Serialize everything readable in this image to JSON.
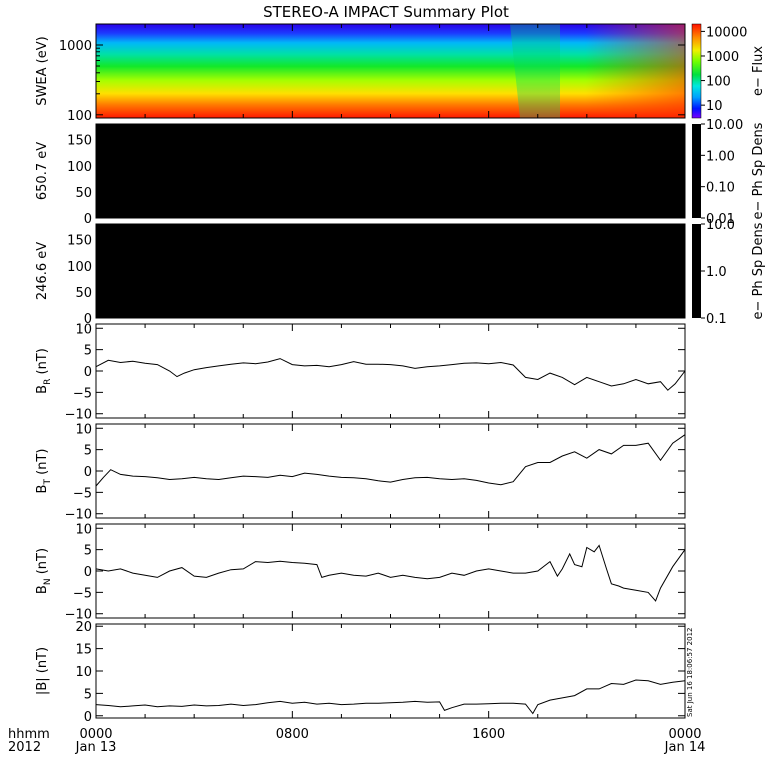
{
  "title": "STEREO-A IMPACT Summary Plot",
  "timestamp": "Sat Jun 16 18:06:57 2012",
  "chart_data": [
    {
      "id": "swea",
      "type": "heatmap",
      "ylabel": "SWEA (eV)",
      "y_scale": "log",
      "ylim": [
        90,
        2000
      ],
      "yticks": [
        {
          "value": 100,
          "label": "100"
        },
        {
          "value": 1000,
          "label": "1000"
        }
      ],
      "colorbar": {
        "label": "e− Flux",
        "scale": "log",
        "range": [
          3,
          20000
        ],
        "ticks": [
          {
            "value": 10,
            "label": "10"
          },
          {
            "value": 100,
            "label": "100"
          },
          {
            "value": 1000,
            "label": "1000"
          },
          {
            "value": 10000,
            "label": "10000"
          }
        ]
      }
    },
    {
      "id": "pad650",
      "type": "heatmap",
      "ylabel": "650.7 eV",
      "ylim": [
        0,
        180
      ],
      "yticks": [
        {
          "value": 0,
          "label": "0"
        },
        {
          "value": 50,
          "label": "50"
        },
        {
          "value": 100,
          "label": "100"
        },
        {
          "value": 150,
          "label": "150"
        }
      ],
      "fill": "#000000",
      "colorbar": {
        "label": "e− Ph Sp Dens",
        "scale": "log",
        "range": [
          0.01,
          10
        ],
        "ticks": [
          {
            "value": 0.01,
            "label": "0.01"
          },
          {
            "value": 0.1,
            "label": "0.10"
          },
          {
            "value": 1,
            "label": "1.00"
          },
          {
            "value": 10,
            "label": "10.00"
          }
        ]
      }
    },
    {
      "id": "pad246",
      "type": "heatmap",
      "ylabel": "246.6 eV",
      "ylim": [
        0,
        180
      ],
      "yticks": [
        {
          "value": 0,
          "label": "0"
        },
        {
          "value": 50,
          "label": "50"
        },
        {
          "value": 100,
          "label": "100"
        },
        {
          "value": 150,
          "label": "150"
        }
      ],
      "fill": "#000000",
      "colorbar": {
        "label": "e− Ph Sp Dens",
        "scale": "log",
        "range": [
          0.1,
          10
        ],
        "ticks": [
          {
            "value": 0.1,
            "label": "0.1"
          },
          {
            "value": 1,
            "label": "1.0"
          },
          {
            "value": 10,
            "label": "10.0"
          }
        ]
      }
    },
    {
      "id": "br",
      "type": "line",
      "ylabel": "B",
      "ylabel_sub": "R",
      "ylabel_unit": " (nT)",
      "ylim": [
        -11,
        11
      ],
      "yticks": [
        {
          "value": -10,
          "label": "−10"
        },
        {
          "value": -5,
          "label": "−5"
        },
        {
          "value": 0,
          "label": "0"
        },
        {
          "value": 5,
          "label": "5"
        },
        {
          "value": 10,
          "label": "10"
        }
      ],
      "x": [
        0,
        0.5,
        1,
        1.5,
        2,
        2.5,
        3,
        3.3,
        3.6,
        4,
        4.5,
        5,
        5.5,
        6,
        6.5,
        7,
        7.5,
        8,
        8.5,
        9,
        9.5,
        10,
        10.5,
        11,
        11.5,
        12,
        12.5,
        13,
        13.5,
        14,
        14.5,
        15,
        15.5,
        16,
        16.5,
        17,
        17.5,
        18,
        18.5,
        19,
        19.5,
        20,
        20.5,
        21,
        21.5,
        22,
        22.5,
        23,
        23.3,
        23.6,
        24
      ],
      "y": [
        1,
        2.5,
        2,
        2.3,
        1.8,
        1.5,
        0,
        -1.3,
        -0.5,
        0.3,
        0.8,
        1.2,
        1.6,
        1.9,
        1.7,
        2.1,
        2.9,
        1.5,
        1.2,
        1.3,
        1.0,
        1.5,
        2.2,
        1.6,
        1.6,
        1.5,
        1.2,
        0.6,
        1.0,
        1.2,
        1.5,
        1.8,
        1.9,
        1.7,
        2.0,
        1.4,
        -1.5,
        -2.0,
        -0.5,
        -1.5,
        -3.2,
        -1.5,
        -2.5,
        -3.5,
        -3.0,
        -2.0,
        -3.0,
        -2.5,
        -4.5,
        -3.0,
        0
      ]
    },
    {
      "id": "bt",
      "type": "line",
      "ylabel": "B",
      "ylabel_sub": "T",
      "ylabel_unit": " (nT)",
      "ylim": [
        -11,
        11
      ],
      "yticks": [
        {
          "value": -10,
          "label": "−10"
        },
        {
          "value": -5,
          "label": "−5"
        },
        {
          "value": 0,
          "label": "0"
        },
        {
          "value": 5,
          "label": "5"
        },
        {
          "value": 10,
          "label": "10"
        }
      ],
      "x": [
        0,
        0.3,
        0.6,
        1,
        1.5,
        2,
        2.5,
        3,
        3.5,
        4,
        4.5,
        5,
        5.5,
        6,
        6.5,
        7,
        7.5,
        8,
        8.5,
        9,
        9.5,
        10,
        10.5,
        11,
        11.5,
        12,
        12.5,
        13,
        13.5,
        14,
        14.5,
        15,
        15.5,
        16,
        16.5,
        17,
        17.5,
        18,
        18.5,
        19,
        19.5,
        20,
        20.5,
        21,
        21.5,
        22,
        22.5,
        23,
        23.5,
        24
      ],
      "y": [
        -3.5,
        -1.5,
        0.3,
        -0.8,
        -1.2,
        -1.3,
        -1.6,
        -2.0,
        -1.8,
        -1.5,
        -1.8,
        -2.0,
        -1.6,
        -1.2,
        -1.3,
        -1.5,
        -1.0,
        -1.3,
        -0.5,
        -0.8,
        -1.2,
        -1.5,
        -1.6,
        -1.8,
        -2.3,
        -2.6,
        -2.0,
        -1.6,
        -1.5,
        -1.8,
        -2.0,
        -1.8,
        -2.2,
        -2.8,
        -3.2,
        -2.5,
        1.0,
        2.0,
        2.0,
        3.5,
        4.5,
        3.0,
        5.0,
        4.0,
        6.0,
        6.0,
        6.5,
        2.5,
        6.5,
        8.5
      ]
    },
    {
      "id": "bn",
      "type": "line",
      "ylabel": "B",
      "ylabel_sub": "N",
      "ylabel_unit": " (nT)",
      "ylim": [
        -11,
        11
      ],
      "yticks": [
        {
          "value": -10,
          "label": "−10"
        },
        {
          "value": -5,
          "label": "−5"
        },
        {
          "value": 0,
          "label": "0"
        },
        {
          "value": 5,
          "label": "5"
        },
        {
          "value": 10,
          "label": "10"
        }
      ],
      "x": [
        0,
        0.5,
        1,
        1.5,
        2,
        2.5,
        3,
        3.5,
        4,
        4.5,
        5,
        5.5,
        6,
        6.5,
        7,
        7.5,
        8,
        8.5,
        9,
        9.2,
        9.5,
        10,
        10.5,
        11,
        11.5,
        12,
        12.5,
        13,
        13.5,
        14,
        14.5,
        15,
        15.5,
        16,
        16.5,
        17,
        17.5,
        18,
        18.5,
        18.8,
        19,
        19.3,
        19.5,
        19.8,
        20,
        20.3,
        20.5,
        20.8,
        21,
        21.3,
        21.5,
        22,
        22.5,
        22.8,
        23,
        23.5,
        24
      ],
      "y": [
        0.5,
        0,
        0.5,
        -0.5,
        -1.0,
        -1.5,
        0,
        0.8,
        -1.2,
        -1.5,
        -0.5,
        0.3,
        0.5,
        2.2,
        2.0,
        2.3,
        2.0,
        1.8,
        1.5,
        -1.5,
        -1.0,
        -0.5,
        -1.0,
        -1.2,
        -0.5,
        -1.5,
        -1.0,
        -1.5,
        -1.8,
        -1.5,
        -0.5,
        -1.0,
        0,
        0.5,
        0,
        -0.5,
        -0.5,
        0,
        2.2,
        -1.2,
        0.5,
        4.0,
        1.5,
        1.0,
        5.5,
        4.5,
        6.0,
        0.5,
        -3.0,
        -3.5,
        -4.0,
        -4.5,
        -5.0,
        -7.0,
        -4.0,
        1.0,
        5.0
      ]
    },
    {
      "id": "bmag",
      "type": "line",
      "ylabel": "|B| (nT)",
      "ylim": [
        -0.5,
        20.5
      ],
      "yticks": [
        {
          "value": 0,
          "label": "0"
        },
        {
          "value": 5,
          "label": "5"
        },
        {
          "value": 10,
          "label": "10"
        },
        {
          "value": 15,
          "label": "15"
        },
        {
          "value": 20,
          "label": "20"
        }
      ],
      "x": [
        0,
        0.5,
        1,
        1.5,
        2,
        2.5,
        3,
        3.5,
        4,
        4.5,
        5,
        5.5,
        6,
        6.5,
        7,
        7.5,
        8,
        8.5,
        9,
        9.5,
        10,
        10.5,
        11,
        11.5,
        12,
        12.5,
        13,
        13.5,
        14,
        14.2,
        14.5,
        15,
        15.5,
        16,
        16.5,
        17,
        17.5,
        17.8,
        18,
        18.5,
        19,
        19.5,
        20,
        20.5,
        21,
        21.5,
        22,
        22.5,
        23,
        23.5,
        24
      ],
      "y": [
        2.5,
        2.3,
        2.0,
        2.2,
        2.4,
        2.0,
        2.2,
        2.1,
        2.4,
        2.2,
        2.3,
        2.6,
        2.3,
        2.5,
        2.9,
        3.2,
        2.8,
        3.0,
        2.6,
        2.8,
        2.5,
        2.6,
        2.8,
        2.8,
        2.9,
        3.0,
        3.2,
        3.0,
        3.1,
        1.2,
        1.8,
        2.6,
        2.6,
        2.7,
        2.8,
        2.8,
        2.6,
        0.5,
        2.5,
        3.5,
        4.0,
        4.5,
        6.0,
        6.0,
        7.2,
        7.0,
        8.0,
        7.8,
        7.0,
        7.5,
        7.8
      ]
    }
  ],
  "x_axis": {
    "range": [
      0,
      24
    ],
    "ticks": [
      {
        "value": 0,
        "label": "0000"
      },
      {
        "value": 8,
        "label": "0800"
      },
      {
        "value": 16,
        "label": "1600"
      },
      {
        "value": 24,
        "label": "0000"
      }
    ],
    "date_labels": [
      {
        "value": 0,
        "label": "Jan 13"
      },
      {
        "value": 24,
        "label": "Jan 14"
      }
    ],
    "row_labels": [
      "hhmm",
      "2012"
    ]
  }
}
